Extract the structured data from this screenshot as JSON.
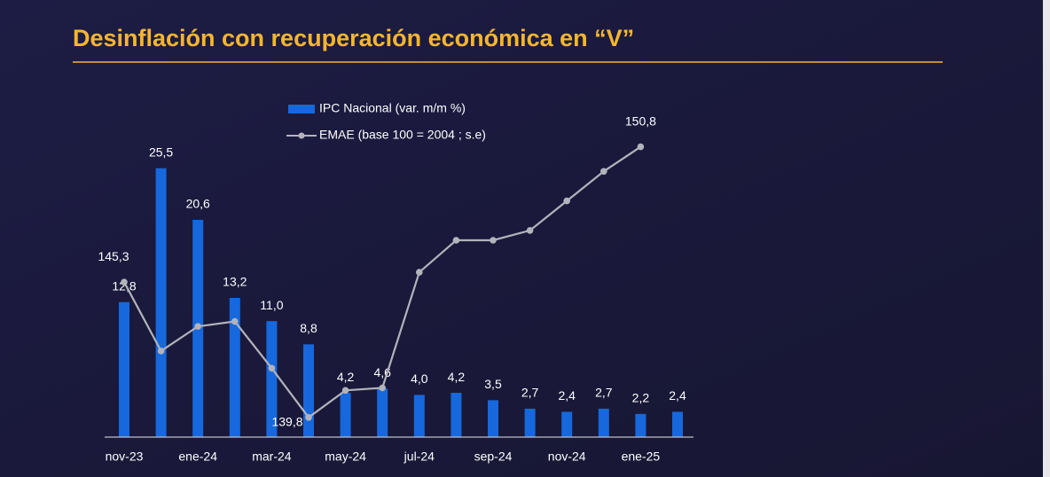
{
  "chart_data": {
    "type": "bar",
    "title": "Desinflación con recuperación económica en “V”",
    "categories": [
      "nov-23",
      null,
      "ene-24",
      null,
      "mar-24",
      null,
      "may-24",
      null,
      "jul-24",
      null,
      "sep-24",
      null,
      "nov-24",
      null,
      "ene-25",
      null
    ],
    "ylim": [
      0,
      28
    ],
    "y2lim": [
      139,
      151
    ],
    "series": [
      {
        "name": "IPC Nacional (var. m/m %)",
        "type": "bar",
        "color": "#1668dc",
        "values": [
          12.8,
          25.5,
          20.6,
          13.2,
          11.0,
          8.8,
          4.2,
          4.6,
          4.0,
          4.2,
          3.5,
          2.7,
          2.4,
          2.7,
          2.2,
          2.4
        ],
        "value_labels": [
          "12,8",
          "25,5",
          "20,6",
          "13,2",
          "11,0",
          "8,8",
          "4,2",
          "4,6",
          "4,0",
          "4,2",
          "3,5",
          "2,7",
          "2,4",
          "2,7",
          "2,2",
          "2,4"
        ]
      },
      {
        "name": "EMAE (base 100 = 2004 ; s.e)",
        "type": "line",
        "axis": "y2",
        "color": "#b3b3bb",
        "values": [
          145.3,
          142.5,
          143.5,
          143.7,
          141.8,
          139.8,
          140.9,
          141.0,
          145.7,
          147.0,
          147.0,
          147.4,
          148.6,
          149.8,
          150.8,
          null
        ],
        "value_labels": [
          "145,3",
          null,
          null,
          null,
          null,
          "139,8",
          null,
          null,
          null,
          null,
          null,
          null,
          null,
          null,
          "150,8",
          null
        ]
      }
    ]
  }
}
